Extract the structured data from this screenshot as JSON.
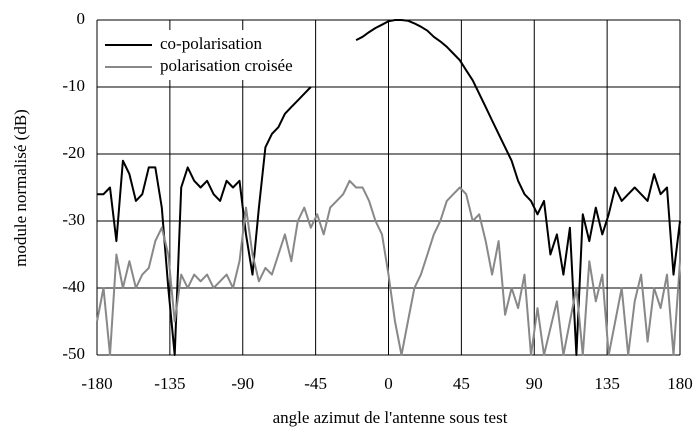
{
  "chart_data": {
    "type": "line",
    "x_label": "angle azimut de l'antenne sous test",
    "y_label": "module normalisé (dB)",
    "x": [
      -180,
      -176,
      -172,
      -168,
      -164,
      -160,
      -156,
      -152,
      -148,
      -144,
      -140,
      -136,
      -132,
      -128,
      -124,
      -120,
      -116,
      -112,
      -108,
      -104,
      -100,
      -96,
      -92,
      -88,
      -84,
      -80,
      -76,
      -72,
      -68,
      -64,
      -60,
      -56,
      -52,
      -48,
      -44,
      -40,
      -36,
      -32,
      -28,
      -24,
      -20,
      -16,
      -12,
      -8,
      -4,
      0,
      4,
      8,
      12,
      16,
      20,
      24,
      28,
      32,
      36,
      40,
      44,
      48,
      52,
      56,
      60,
      64,
      68,
      72,
      76,
      80,
      84,
      88,
      92,
      96,
      100,
      104,
      108,
      112,
      116,
      120,
      124,
      128,
      132,
      136,
      140,
      144,
      148,
      152,
      156,
      160,
      164,
      168,
      172,
      176,
      180
    ],
    "series": [
      {
        "name": "co-polarisation",
        "color": "#000000",
        "values": [
          -26,
          -26,
          -25,
          -33,
          -21,
          -23,
          -27,
          -26,
          -22,
          -22,
          -28,
          -40,
          -50,
          -25,
          -22,
          -24,
          -25,
          -24,
          -26,
          -27,
          -24,
          -25,
          -24,
          -32,
          -38,
          -28,
          -19,
          -17,
          -16,
          -14,
          -13,
          -12,
          -11,
          -10,
          null,
          null,
          null,
          null,
          null,
          null,
          -3,
          -2.5,
          -1.8,
          -1.2,
          -0.7,
          -0.2,
          0,
          0,
          -0.1,
          -0.5,
          -1,
          -1.6,
          -2.5,
          -3.2,
          -4,
          -5,
          -6,
          -7.5,
          -9,
          -11,
          -13,
          -15,
          -17,
          -19,
          -21,
          -24,
          -26,
          -27,
          -29,
          -27,
          -35,
          -32,
          -38,
          -31,
          -50,
          -29,
          -33,
          -28,
          -32,
          -29,
          -25,
          -27,
          -26,
          -25,
          -26,
          -27,
          -23,
          -26,
          -25,
          -38,
          -30
        ]
      },
      {
        "name": "polarisation croisée",
        "color": "#888888",
        "values": [
          -45,
          -40,
          -50,
          -35,
          -40,
          -36,
          -40,
          -38,
          -37,
          -33,
          -31,
          -35,
          -45,
          -38,
          -40,
          -38,
          -39,
          -38,
          -40,
          -39,
          -38,
          -40,
          -36,
          -28,
          -35,
          -39,
          -37,
          -38,
          -35,
          -32,
          -36,
          -30,
          -28,
          -31,
          -29,
          -32,
          -28,
          -27,
          -26,
          -24,
          -25,
          -25,
          -27,
          -30,
          -32,
          -38,
          -45,
          -50,
          -45,
          -40,
          -38,
          -35,
          -32,
          -30,
          -27,
          -26,
          -25,
          -26,
          -30,
          -29,
          -33,
          -38,
          -33,
          -44,
          -40,
          -43,
          -38,
          -50,
          -43,
          -50,
          -46,
          -42,
          -50,
          -45,
          -40,
          -50,
          -36,
          -42,
          -38,
          -50,
          -45,
          -40,
          -50,
          -42,
          -38,
          -48,
          -40,
          -43,
          -38,
          -50,
          -36
        ]
      }
    ],
    "xlim": [
      -180,
      180
    ],
    "ylim": [
      -50,
      0
    ],
    "xticks": [
      -180,
      -135,
      -90,
      -45,
      0,
      45,
      90,
      135,
      180
    ],
    "yticks": [
      -50,
      -40,
      -30,
      -20,
      -10,
      0
    ],
    "grid": true
  }
}
